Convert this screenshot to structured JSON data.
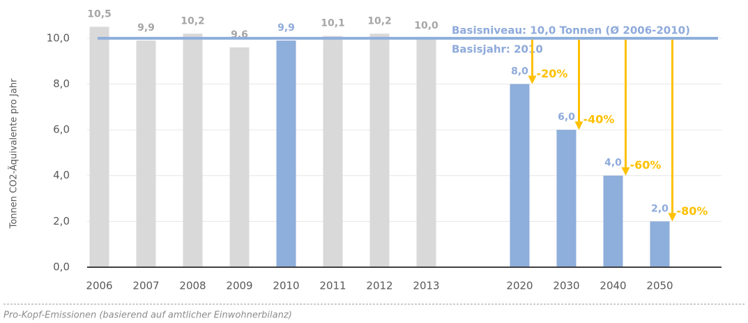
{
  "chart_data": {
    "type": "bar",
    "y_label": "Tonnen CO2-Äquivalente pro Jahr",
    "categories": [
      "2006",
      "2007",
      "2008",
      "2009",
      "2010",
      "2011",
      "2012",
      "2013",
      null,
      "2020",
      "2030",
      "2040",
      "2050"
    ],
    "values": [
      10.5,
      9.9,
      10.2,
      9.6,
      9.9,
      10.1,
      10.2,
      10.0,
      null,
      8.0,
      6.0,
      4.0,
      2.0
    ],
    "value_labels": [
      "10,5",
      "9,9",
      "10,2",
      "9,6",
      "9,9",
      "10,1",
      "10,2",
      "10,0",
      null,
      "8,0",
      "6,0",
      "4,0",
      "2,0"
    ],
    "colors": [
      "#d9d9d9",
      "#d9d9d9",
      "#d9d9d9",
      "#d9d9d9",
      "#8eaedb",
      "#d9d9d9",
      "#d9d9d9",
      "#d9d9d9",
      null,
      "#8eaedb",
      "#8eaedb",
      "#8eaedb",
      "#8eaedb"
    ],
    "label_colors": [
      "#a6a6a6",
      "#a6a6a6",
      "#a6a6a6",
      "#a6a6a6",
      "#8eaadb",
      "#a6a6a6",
      "#a6a6a6",
      "#a6a6a6",
      null,
      "#8eaadb",
      "#8eaadb",
      "#8eaadb",
      "#8eaadb"
    ],
    "baseline": 10.0,
    "baseline_color": "#8eaedb",
    "baseline_label": "Basisniveau: 10,0 Tonnen (Ø 2006-2010)",
    "baseline_year_label": "Basisjahr: 2010",
    "reductions": [
      null,
      null,
      null,
      null,
      null,
      null,
      null,
      null,
      null,
      -20,
      -40,
      -60,
      -80
    ],
    "reduction_labels": [
      null,
      null,
      null,
      null,
      null,
      null,
      null,
      null,
      null,
      "-20%",
      "-40%",
      "-60%",
      "-80%"
    ],
    "reduction_color": "#ffc000",
    "ylim": [
      0,
      11
    ],
    "yticks": [
      {
        "value": 0,
        "label": "0,0"
      },
      {
        "value": 2,
        "label": "2,0"
      },
      {
        "value": 4,
        "label": "4,0"
      },
      {
        "value": 6,
        "label": "6,0"
      },
      {
        "value": 8,
        "label": "8,0"
      },
      {
        "value": 10,
        "label": "10,0"
      }
    ],
    "grid": true,
    "footnote": "Pro-Kopf-Emissionen (basierend auf amtlicher Einwohnerbilanz)"
  }
}
